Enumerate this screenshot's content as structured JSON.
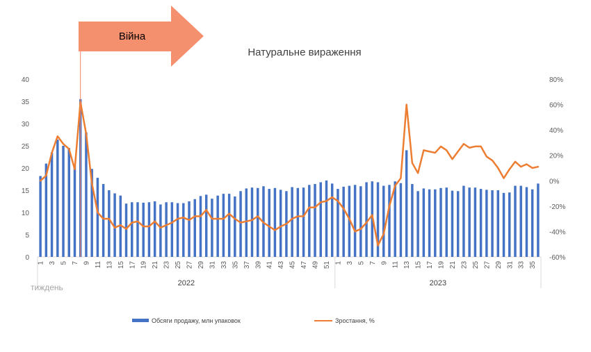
{
  "chart_data": {
    "type": "bar+line",
    "title": "Натуральне вираження",
    "xlabel": "тиждень",
    "annotation": "Війна",
    "annotation_week": 8,
    "colors": {
      "bars": "#4472c4",
      "line": "#ed7d31",
      "arrow": "#f4845f"
    },
    "y_left": {
      "min": 0,
      "max": 40,
      "step": 5,
      "ticks": [
        "0",
        "5",
        "10",
        "15",
        "20",
        "25",
        "30",
        "35",
        "40"
      ]
    },
    "y_right": {
      "min": -60,
      "max": 80,
      "step": 20,
      "ticks": [
        "-60%",
        "-40%",
        "-20%",
        "0%",
        "20%",
        "40%",
        "60%",
        "80%"
      ]
    },
    "years": [
      {
        "label": "2022",
        "weeks": 52
      },
      {
        "label": "2023",
        "weeks": 36
      }
    ],
    "tick_labels_2022": [
      "1",
      "3",
      "5",
      "7",
      "9",
      "11",
      "13",
      "15",
      "17",
      "19",
      "21",
      "23",
      "25",
      "27",
      "29",
      "31",
      "33",
      "35",
      "37",
      "39",
      "41",
      "43",
      "45",
      "47",
      "49",
      "51"
    ],
    "tick_labels_2023": [
      "1",
      "3",
      "5",
      "7",
      "9",
      "11",
      "13",
      "15",
      "17",
      "19",
      "21",
      "23",
      "25",
      "27",
      "29",
      "31",
      "33",
      "35"
    ],
    "series": [
      {
        "name": "Обсяги продажу, млн упаковок",
        "axis": "left",
        "kind": "bar",
        "values": [
          18.2,
          21,
          23.5,
          26.4,
          25,
          24.5,
          20.5,
          35.5,
          28,
          19.8,
          17.8,
          16.4,
          15,
          14.3,
          13.8,
          12,
          12.3,
          12.3,
          12.2,
          12.3,
          12.5,
          11.8,
          12.3,
          12.3,
          12.1,
          12.1,
          12.5,
          13,
          13.7,
          14,
          13.1,
          13.8,
          14.2,
          14.2,
          13.6,
          14.8,
          15.4,
          15.6,
          15.5,
          15.9,
          15.3,
          15.5,
          15.1,
          14.8,
          15.7,
          15.5,
          15.6,
          16.2,
          16.4,
          16.8,
          17.2,
          16.5,
          15.3,
          15.8,
          16,
          16.2,
          15.9,
          16.8,
          17,
          16.8,
          16,
          16.2,
          17,
          16.6,
          24,
          16.4,
          14.8,
          15.4,
          15.2,
          15.2,
          15.5,
          15.6,
          14.9,
          14.8,
          16,
          15.6,
          15.6,
          15.3,
          15.1,
          15,
          15,
          14.4,
          14.5,
          16,
          16,
          15.7,
          15.2,
          16.5
        ]
      },
      {
        "name": "Зростання, %",
        "axis": "right",
        "kind": "line",
        "values": [
          0,
          4,
          22,
          35,
          29,
          25,
          9,
          62,
          37,
          -2,
          -25,
          -30,
          -30,
          -37,
          -35,
          -38,
          -33,
          -32,
          -36,
          -36,
          -32,
          -37,
          -35,
          -33,
          -30,
          -29,
          -31,
          -28,
          -28,
          -23,
          -30,
          -30,
          -30,
          -26,
          -30,
          -33,
          -32,
          -31,
          -28,
          -33,
          -36,
          -39,
          -36,
          -34,
          -30,
          -28,
          -28,
          -21,
          -21,
          -17,
          -16,
          -13,
          -16,
          -22,
          -30,
          -40,
          -38,
          -33,
          -27,
          -51,
          -42,
          -20,
          -4,
          2,
          60,
          14,
          6,
          24,
          23,
          22,
          27,
          24,
          17,
          23,
          29,
          26,
          27,
          27,
          19,
          16,
          10,
          2,
          9,
          15,
          11,
          13,
          10,
          11
        ]
      }
    ]
  }
}
